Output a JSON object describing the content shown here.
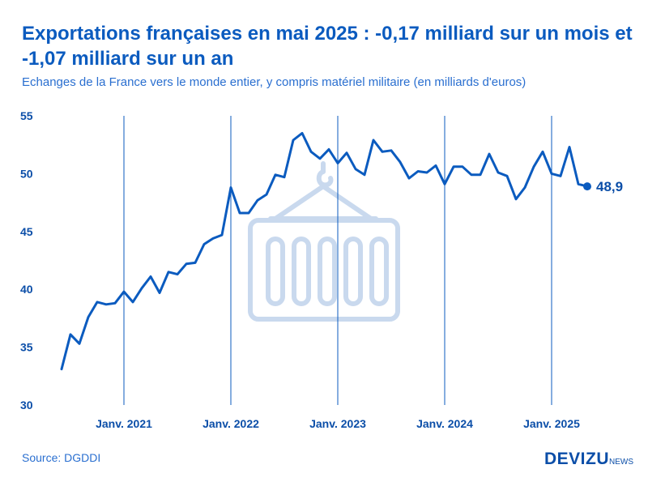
{
  "header": {
    "title": "Exportations françaises en mai 2025 : -0,17 milliard sur un mois et -1,07 milliard sur un an",
    "subtitle": "Echanges de la France vers le monde entier, y compris matériel militaire (en milliards d'euros)"
  },
  "footer": {
    "source": "Source: DGDDI",
    "brand": "DEVIZU",
    "brand_sub": "NEWS"
  },
  "colors": {
    "line": "#0b5bbf",
    "text": "#0b4ea8",
    "watermark": "#c9d9ee"
  },
  "icons": {
    "watermark": "container-icon"
  },
  "chart_data": {
    "type": "line",
    "title": "Exportations françaises en mai 2025 : -0,17 milliard sur un mois et -1,07 milliard sur un an",
    "subtitle": "Echanges de la France vers le monde entier, y compris matériel militaire (en milliards d'euros)",
    "xlabel": "",
    "ylabel": "",
    "ylim": [
      30,
      55
    ],
    "yticks": [
      "30",
      "35",
      "40",
      "45",
      "50",
      "55"
    ],
    "x_axis": {
      "start": "2020-06",
      "tick_labels": [
        "Janv. 2021",
        "Janv. 2022",
        "Janv. 2023",
        "Janv. 2024",
        "Janv. 2025"
      ],
      "tick_months": [
        "2021-01",
        "2022-01",
        "2023-01",
        "2024-01",
        "2025-01"
      ]
    },
    "grid": "vertical lines at each January",
    "end_label": "48,9",
    "series": [
      {
        "values": [
          33.1,
          36.1,
          35.3,
          37.6,
          38.9,
          38.7,
          38.8,
          39.8,
          38.9,
          40.1,
          41.1,
          39.7,
          41.5,
          41.3,
          42.2,
          42.3,
          43.9,
          44.4,
          44.7,
          48.8,
          46.6,
          46.6,
          47.7,
          48.2,
          49.9,
          49.7,
          52.9,
          53.5,
          51.9,
          51.3,
          52.1,
          50.9,
          51.8,
          50.4,
          49.9,
          52.9,
          51.9,
          52.0,
          51.0,
          49.6,
          50.2,
          50.1,
          50.7,
          49.1,
          50.6,
          50.6,
          49.9,
          49.9,
          51.7,
          50.1,
          49.8,
          47.8,
          48.8,
          50.6,
          51.9,
          50.0,
          49.8,
          52.3,
          49.1,
          48.9
        ]
      }
    ]
  }
}
